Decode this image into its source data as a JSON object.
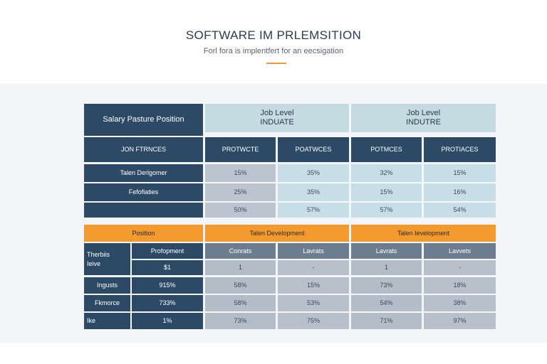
{
  "header": {
    "title": "SOFTWARE IM PRLEMSITION",
    "subtitle": "Forl fora is implentfert for an eecsigation"
  },
  "colors": {
    "navy": "#2c4a66",
    "light_blue": "#c4dbe2",
    "orange": "#f39a2e",
    "slate": "#6c7d90",
    "light_grey": "#b3bdc8"
  },
  "top_table": {
    "corner": "Salary Pasture Position",
    "group_headers": [
      {
        "line1": "Job Level",
        "line2": "INDUATE"
      },
      {
        "line1": "Job Level",
        "line2": "INDUTRE"
      }
    ],
    "row_header": "JON FTRNCES",
    "col_headers": [
      "PROTWCTE",
      "POATWCES",
      "POTMCES",
      "PROTIACES"
    ],
    "rows": [
      {
        "label": "Talen Derlgomer",
        "values": [
          "15%",
          "35%",
          "32%",
          "15%"
        ]
      },
      {
        "label": "Fefofiaties",
        "values": [
          "25%",
          "35%",
          "15%",
          "16%"
        ]
      },
      {
        "label": "",
        "values": [
          "50%",
          "57%",
          "57%",
          "54%"
        ]
      }
    ]
  },
  "bottom_table": {
    "header": "Position",
    "group_headers": [
      "Talen Development",
      "Talen Ievelopment"
    ],
    "sub_left": [
      "Therbiis\nIeive",
      "Profopment"
    ],
    "col_headers": [
      "Conrats",
      "Lavrats",
      "Lavrats",
      "Lavvets"
    ],
    "rows": [
      {
        "label": "",
        "mid": "$1",
        "values": [
          "1",
          "-",
          "1",
          "-"
        ]
      },
      {
        "label": "Ingusts",
        "mid": "915%",
        "values": [
          "58%",
          "15%",
          "73%",
          "18%"
        ]
      },
      {
        "label": "Fkmorce",
        "mid": "733%",
        "values": [
          "58%",
          "53%",
          "54%",
          "38%"
        ]
      },
      {
        "label": "Ike",
        "mid": "1%",
        "values": [
          "73%",
          "75%",
          "71%",
          "97%"
        ]
      }
    ]
  }
}
